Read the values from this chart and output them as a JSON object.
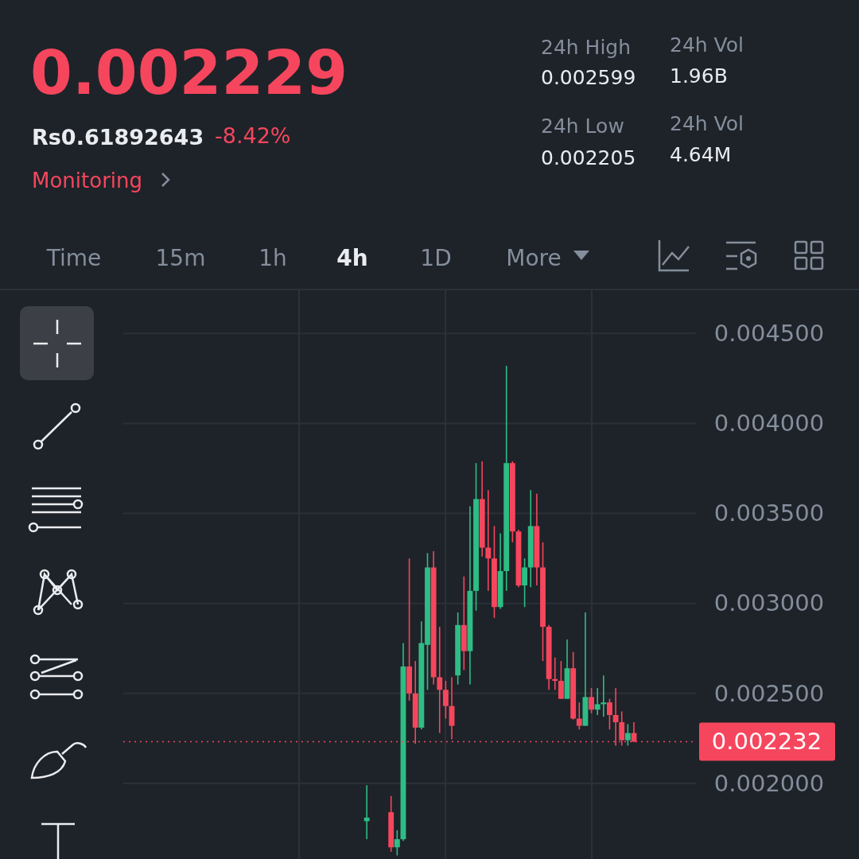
{
  "chart_data": {
    "type": "candlestick",
    "title": "0.002229",
    "annotations": [
      "Rs0.61892643",
      "-8.42%",
      "Monitoring",
      "24h High",
      "0.002599",
      "24h Low",
      "0.002205",
      "24h Vol",
      "1.96B",
      "24h Vol",
      "4.64M",
      "Time",
      "15m",
      "1h",
      "4h",
      "1D",
      "More"
    ],
    "categories": [
      null,
      null,
      null,
      null,
      null,
      null,
      null,
      null,
      null,
      null,
      null,
      null,
      null,
      null,
      null,
      null,
      null,
      null,
      null,
      null,
      null,
      null,
      null,
      null,
      null,
      null,
      null,
      null,
      null,
      null,
      null,
      null,
      null,
      null,
      null,
      null,
      null,
      null,
      null,
      null,
      null,
      null,
      null,
      null,
      null,
      null,
      null,
      null,
      null,
      null
    ],
    "ohlc": [
      null,
      null,
      null,
      null,
      null,
      [
        0.00179,
        0.00199,
        0.00169,
        0.00181
      ],
      null,
      null,
      null,
      [
        0.00184,
        0.00193,
        0.00162,
        0.001645
      ],
      [
        0.001645,
        0.00174,
        0.0016,
        0.00169
      ],
      [
        0.00169,
        0.00278,
        0.00168,
        0.00265
      ],
      [
        0.00265,
        0.00325,
        0.00246,
        0.0025
      ],
      [
        0.0025,
        0.00268,
        0.00222,
        0.00231
      ],
      [
        0.00231,
        0.0029,
        0.0023,
        0.00278
      ],
      [
        0.00277,
        0.00328,
        0.00252,
        0.0032
      ],
      [
        0.0032,
        0.00329,
        0.00255,
        0.00259
      ],
      [
        0.00259,
        0.00287,
        0.00228,
        0.00252
      ],
      [
        0.00252,
        0.00257,
        0.00236,
        0.00243
      ],
      [
        0.00243,
        0.00259,
        0.002245,
        0.00232
      ],
      [
        0.0026,
        0.00295,
        0.00255,
        0.00288
      ],
      [
        0.00288,
        0.00315,
        0.00263,
        0.002735
      ],
      [
        0.002735,
        0.00354,
        0.00255,
        0.00307
      ],
      [
        0.00307,
        0.00378,
        0.00296,
        0.00358
      ],
      [
        0.00358,
        0.00379,
        0.00326,
        0.00331
      ],
      [
        0.00331,
        0.00363,
        0.00307,
        0.00325
      ],
      [
        0.00325,
        0.00343,
        0.00292,
        0.00298
      ],
      [
        0.00298,
        0.00339,
        0.00297,
        0.00318
      ],
      [
        0.00318,
        0.00432,
        0.00307,
        0.00378
      ],
      [
        0.00378,
        0.00379,
        0.00334,
        0.0034
      ],
      [
        0.0034,
        0.00341,
        0.00309,
        0.0031
      ],
      [
        0.0031,
        0.00325,
        0.00298,
        0.0032
      ],
      [
        0.0032,
        0.00363,
        0.00309,
        0.00343
      ],
      [
        0.00343,
        0.00361,
        0.0031,
        0.0032
      ],
      [
        0.0032,
        0.00334,
        0.00268,
        0.00287
      ],
      [
        0.00287,
        0.00288,
        0.00252,
        0.00258
      ],
      [
        0.00258,
        0.0027,
        0.00252,
        0.00257
      ],
      [
        0.00257,
        0.00268,
        0.00247,
        0.00247
      ],
      [
        0.00247,
        0.0028,
        0.00247,
        0.00264
      ],
      [
        0.00264,
        0.00273,
        0.002355,
        0.00236
      ],
      [
        0.00236,
        0.00245,
        0.0023,
        0.00232
      ],
      [
        0.00232,
        0.00295,
        0.00232,
        0.00248
      ],
      [
        0.00248,
        0.00253,
        0.00239,
        0.00241
      ],
      [
        0.00241,
        0.00253,
        0.00238,
        0.00244
      ],
      [
        0.00244,
        0.0026,
        0.00237,
        0.00245
      ],
      [
        0.00245,
        0.00247,
        0.0023,
        0.00238
      ],
      [
        0.00238,
        0.00253,
        0.00221,
        0.00234
      ],
      [
        0.00234,
        0.0024,
        0.00221,
        0.00224
      ],
      [
        0.00224,
        0.00233,
        0.00221,
        0.00228
      ],
      [
        0.00228,
        0.00234,
        0.00223,
        0.002232
      ]
    ],
    "ylim": [
      0.00158,
      0.00474
    ],
    "yticks": [
      {
        "value": 0.002,
        "label": "0.002000"
      },
      {
        "value": 0.0025,
        "label": "0.002500"
      },
      {
        "value": 0.003,
        "label": "0.003000"
      },
      {
        "value": 0.0035,
        "label": "0.003500"
      },
      {
        "value": 0.004,
        "label": "0.004000"
      },
      {
        "value": 0.0045,
        "label": "0.004500"
      }
    ],
    "grid": true,
    "tick_labels": "y",
    "ref_lines": [
      {
        "axis": "y",
        "value": 0.002232,
        "label": "0.002232",
        "color": "#f6465d",
        "line_style": "dotted"
      }
    ]
  }
}
